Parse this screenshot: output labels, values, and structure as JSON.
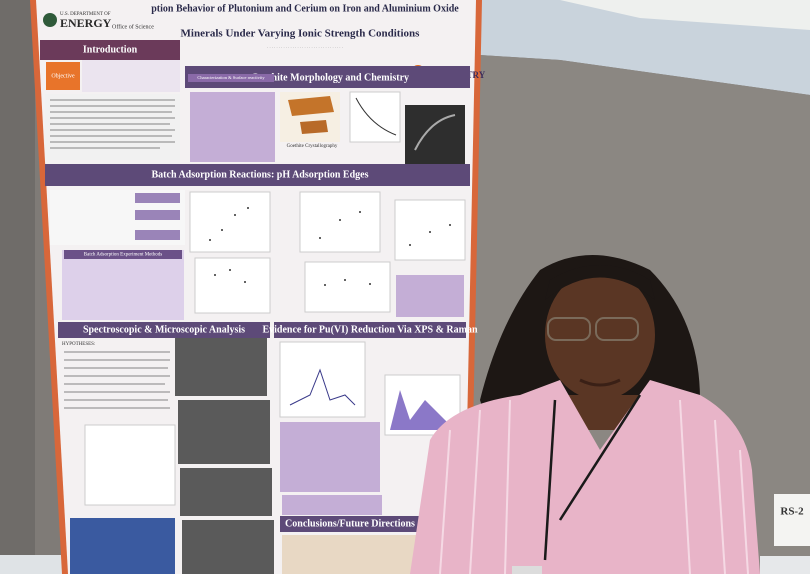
{
  "header": {
    "agency": "U.S. DEPARTMENT OF",
    "agency_name": "ENERGY",
    "office": "Office of Science",
    "title_line1": "ption Behavior of Plutonium and Cerium on Iron and Aluminium Oxide",
    "title_line2": "Minerals Under Varying Ionic Strength Conditions",
    "university": "CHEMISTRY"
  },
  "sections": {
    "introduction": "Introduction",
    "objective": "Objective",
    "goethite": "Goethite Morphology and Chemistry",
    "characterization": "Characterization & Surface reactivity",
    "crystallography": "Goethite Crystallography",
    "batch": "Batch Adsorption Reactions: pH Adsorption Edges",
    "methods": "Batch Adsorption Experiment Methods",
    "spectroscopic": "Spectroscopic & Microscopic Analysis",
    "hypotheses": "HYPOTHESES:",
    "evidence": "Evidence for Pu(VI) Reduction Via XPS & Raman",
    "conclusions": "Conclusions/Future Directions"
  },
  "sign": "RS-2"
}
